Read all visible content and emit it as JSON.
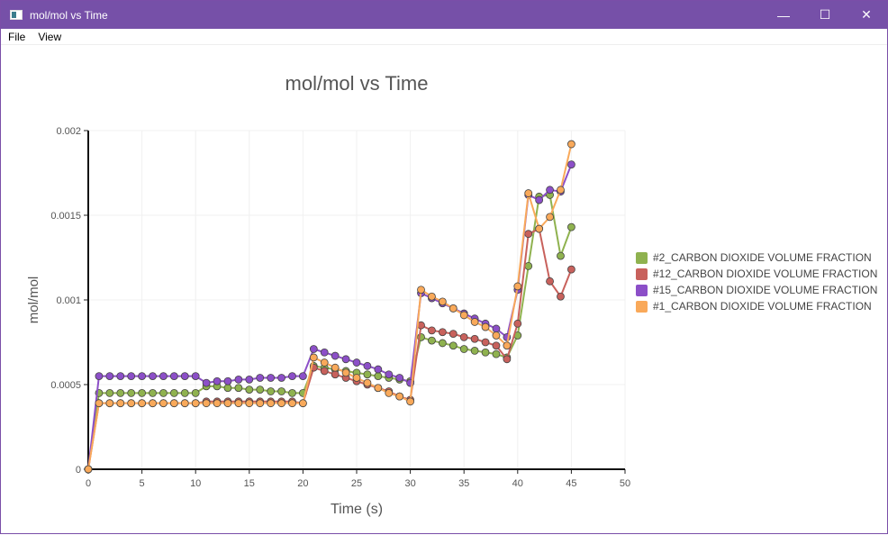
{
  "window": {
    "title": "mol/mol vs Time",
    "minimize": "—",
    "maximize": "☐",
    "close": "✕"
  },
  "menu": [
    "File",
    "View"
  ],
  "chart_data": {
    "type": "line",
    "title": "mol/mol vs Time",
    "xlabel": "Time (s)",
    "ylabel": "mol/mol",
    "xlim": [
      0,
      50
    ],
    "ylim": [
      0,
      0.002
    ],
    "xticks": [
      "0",
      "5",
      "10",
      "15",
      "20",
      "25",
      "30",
      "35",
      "40",
      "45",
      "50"
    ],
    "yticks": [
      "0",
      "0.0005",
      "0.001",
      "0.0015",
      "0.002"
    ],
    "legend_position": "right",
    "x": [
      0,
      1,
      2,
      3,
      4,
      5,
      6,
      7,
      8,
      9,
      10,
      11,
      12,
      13,
      14,
      15,
      16,
      17,
      18,
      19,
      20,
      21,
      22,
      23,
      24,
      25,
      26,
      27,
      28,
      29,
      30,
      31,
      32,
      33,
      34,
      35,
      36,
      37,
      38,
      39,
      40,
      41,
      42,
      43,
      44,
      45
    ],
    "series": [
      {
        "name": "#2_CARBON DIOXIDE VOLUME FRACTION",
        "color": "#8fb24f",
        "values": [
          0,
          0.00045,
          0.00045,
          0.00045,
          0.00045,
          0.00045,
          0.00045,
          0.00045,
          0.00045,
          0.00045,
          0.00045,
          0.00049,
          0.00049,
          0.00048,
          0.00048,
          0.00047,
          0.00047,
          0.00046,
          0.00046,
          0.00045,
          0.00045,
          0.00061,
          0.0006,
          0.00059,
          0.00058,
          0.00057,
          0.00056,
          0.00055,
          0.00054,
          0.00053,
          0.00052,
          0.00078,
          0.00076,
          0.000745,
          0.00073,
          0.00071,
          0.0007,
          0.00069,
          0.00068,
          0.00066,
          0.00079,
          0.0012,
          0.00161,
          0.00162,
          0.00126,
          0.00143
        ]
      },
      {
        "name": "#12_CARBON DIOXIDE VOLUME FRACTION",
        "color": "#c8615c",
        "values": [
          0,
          0.00039,
          0.00039,
          0.00039,
          0.00039,
          0.00039,
          0.00039,
          0.00039,
          0.00039,
          0.00039,
          0.00039,
          0.0004,
          0.0004,
          0.0004,
          0.0004,
          0.0004,
          0.0004,
          0.0004,
          0.0004,
          0.0004,
          0.00039,
          0.0006,
          0.00058,
          0.00056,
          0.00054,
          0.00052,
          0.0005,
          0.00048,
          0.00046,
          0.00043,
          0.00041,
          0.00085,
          0.00082,
          0.00081,
          0.0008,
          0.00078,
          0.00077,
          0.00075,
          0.00073,
          0.00065,
          0.00086,
          0.00139,
          0.00142,
          0.00111,
          0.00102,
          0.00118
        ]
      },
      {
        "name": "#15_CARBON DIOXIDE VOLUME FRACTION",
        "color": "#8c4fc8",
        "values": [
          0,
          0.00055,
          0.00055,
          0.00055,
          0.00055,
          0.00055,
          0.00055,
          0.00055,
          0.00055,
          0.00055,
          0.00055,
          0.00051,
          0.00052,
          0.00052,
          0.00053,
          0.00053,
          0.00054,
          0.00054,
          0.00054,
          0.00055,
          0.00055,
          0.00071,
          0.00069,
          0.00067,
          0.00065,
          0.00063,
          0.00061,
          0.00059,
          0.00056,
          0.00054,
          0.00051,
          0.00104,
          0.00101,
          0.00098,
          0.00095,
          0.00092,
          0.00089,
          0.00086,
          0.00083,
          0.00078,
          0.00106,
          0.00162,
          0.00159,
          0.00165,
          0.00164,
          0.0018
        ]
      },
      {
        "name": "#1_CARBON DIOXIDE VOLUME FRACTION",
        "color": "#f9a95a",
        "values": [
          0,
          0.00039,
          0.00039,
          0.00039,
          0.00039,
          0.00039,
          0.00039,
          0.00039,
          0.00039,
          0.00039,
          0.00039,
          0.00039,
          0.00039,
          0.00039,
          0.00039,
          0.00039,
          0.00039,
          0.00039,
          0.00039,
          0.00039,
          0.00039,
          0.00066,
          0.00063,
          0.0006,
          0.00057,
          0.00054,
          0.00051,
          0.00048,
          0.00045,
          0.00043,
          0.0004,
          0.00106,
          0.00102,
          0.00099,
          0.00095,
          0.00091,
          0.00087,
          0.00084,
          0.00079,
          0.00073,
          0.00108,
          0.00163,
          0.00142,
          0.00149,
          0.00165,
          0.00192
        ]
      }
    ]
  }
}
